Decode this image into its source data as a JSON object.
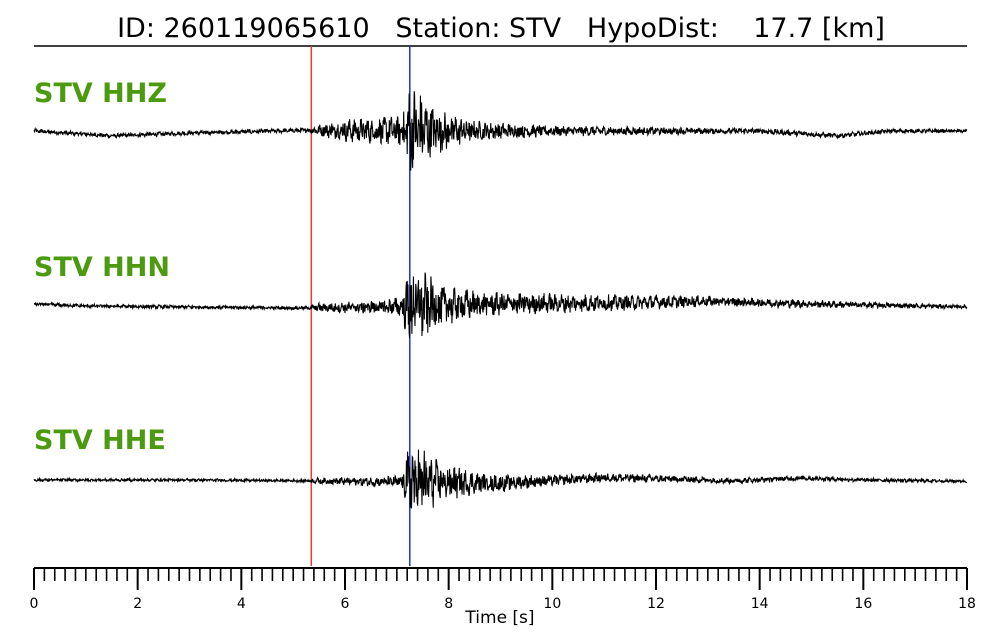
{
  "chart_data": {
    "type": "line",
    "title": "ID: 260119065610   Station: STV   HypoDist:    17.7 [km]",
    "xlabel": "Time [s]",
    "xlim": [
      0,
      18
    ],
    "x_ticks": [
      "0",
      "2",
      "4",
      "6",
      "8",
      "10",
      "12",
      "14",
      "16",
      "18"
    ],
    "x_major_step": 2,
    "x_minor_step": 0.2,
    "grid": false,
    "vertical_markers": [
      {
        "x": 5.35,
        "color": "#e8393d"
      },
      {
        "x": 7.25,
        "color": "#1f2fd0"
      }
    ],
    "label_color": "#4b9a10",
    "trace_color": "#000000",
    "series": [
      {
        "name": "STV HHZ",
        "amplitude_envelope": [
          [
            0,
            0.05
          ],
          [
            5.3,
            0.05
          ],
          [
            5.4,
            0.1
          ],
          [
            6.0,
            0.25
          ],
          [
            6.6,
            0.3
          ],
          [
            7.1,
            0.35
          ],
          [
            7.25,
            1.0
          ],
          [
            7.35,
            0.95
          ],
          [
            7.7,
            0.55
          ],
          [
            8.5,
            0.22
          ],
          [
            10.0,
            0.12
          ],
          [
            13.0,
            0.07
          ],
          [
            18.0,
            0.04
          ]
        ],
        "baseline": [
          [
            0,
            0.0
          ],
          [
            1.5,
            -0.12
          ],
          [
            3.0,
            -0.05
          ],
          [
            5.3,
            0.02
          ],
          [
            8.0,
            0.0
          ],
          [
            12.0,
            0.0
          ],
          [
            14.0,
            0.0
          ],
          [
            15.5,
            -0.12
          ],
          [
            16.5,
            0.0
          ],
          [
            18.0,
            0.0
          ]
        ]
      },
      {
        "name": "STV HHN",
        "amplitude_envelope": [
          [
            0,
            0.04
          ],
          [
            5.3,
            0.04
          ],
          [
            5.5,
            0.1
          ],
          [
            6.5,
            0.15
          ],
          [
            7.1,
            0.22
          ],
          [
            7.25,
            1.0
          ],
          [
            7.35,
            0.9
          ],
          [
            7.8,
            0.5
          ],
          [
            8.6,
            0.28
          ],
          [
            10.0,
            0.22
          ],
          [
            13.0,
            0.12
          ],
          [
            18.0,
            0.04
          ]
        ],
        "baseline": [
          [
            0,
            0.05
          ],
          [
            1.0,
            0.0
          ],
          [
            2.5,
            -0.02
          ],
          [
            5.0,
            -0.05
          ],
          [
            7.0,
            -0.02
          ],
          [
            9.0,
            0.05
          ],
          [
            11.5,
            0.08
          ],
          [
            13.0,
            0.12
          ],
          [
            15.0,
            0.05
          ],
          [
            18.0,
            -0.02
          ]
        ]
      },
      {
        "name": "STV HHE",
        "amplitude_envelope": [
          [
            0,
            0.03
          ],
          [
            5.3,
            0.03
          ],
          [
            5.5,
            0.07
          ],
          [
            6.5,
            0.1
          ],
          [
            7.1,
            0.15
          ],
          [
            7.25,
            1.0
          ],
          [
            7.35,
            0.9
          ],
          [
            7.8,
            0.45
          ],
          [
            8.6,
            0.22
          ],
          [
            10.0,
            0.12
          ],
          [
            13.0,
            0.07
          ],
          [
            18.0,
            0.03
          ]
        ],
        "baseline": [
          [
            0,
            0.0
          ],
          [
            3.0,
            0.0
          ],
          [
            5.3,
            -0.02
          ],
          [
            7.0,
            -0.05
          ],
          [
            9.0,
            -0.08
          ],
          [
            11.0,
            0.06
          ],
          [
            12.5,
            0.02
          ],
          [
            13.5,
            -0.02
          ],
          [
            14.8,
            0.05
          ],
          [
            16.0,
            0.0
          ],
          [
            18.0,
            -0.03
          ]
        ]
      }
    ]
  }
}
